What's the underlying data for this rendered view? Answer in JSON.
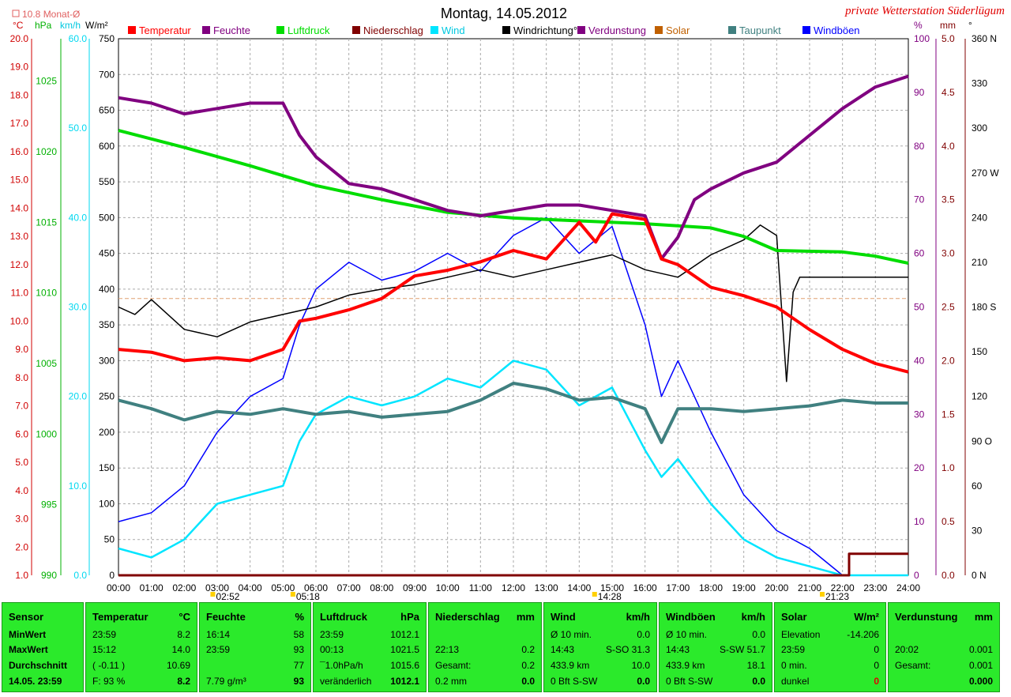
{
  "header": {
    "title": "Montag, 14.05.2012",
    "station": "private Wetterstation Süderlügum",
    "monthly_avg_label": "10.8 Monat-Ø",
    "unit_celsius": "°C",
    "unit_hpa": "hPa",
    "unit_kmh": "km/h",
    "unit_wm2": "W/m²",
    "unit_percent": "%",
    "unit_mm": "mm",
    "unit_degree": "°"
  },
  "legend": [
    {
      "label": "Temperatur",
      "color": "#ff0000"
    },
    {
      "label": "Feuchte",
      "color": "#800080"
    },
    {
      "label": "Luftdruck",
      "color": "#00dd00"
    },
    {
      "label": "Niederschlag",
      "color": "#800000"
    },
    {
      "label": "Wind",
      "color": "#00e5ff"
    },
    {
      "label": "Windrichtung°",
      "color": "#000000"
    },
    {
      "label": "Verdunstung",
      "color": "#800080"
    },
    {
      "label": "Solar",
      "color": "#c06000"
    },
    {
      "label": "Taupunkt",
      "color": "#408080"
    },
    {
      "label": "Windböen",
      "color": "#0000ff"
    }
  ],
  "chart_data": {
    "type": "line",
    "x_ticks": [
      "00:00",
      "01:00",
      "02:00",
      "03:00",
      "04:00",
      "05:00",
      "06:00",
      "07:00",
      "08:00",
      "09:00",
      "10:00",
      "11:00",
      "12:00",
      "13:00",
      "14:00",
      "15:00",
      "16:00",
      "17:00",
      "18:00",
      "19:00",
      "20:00",
      "21:00",
      "22:00",
      "23:00",
      "24:00"
    ],
    "axes": {
      "temperature": {
        "label": "°C",
        "range": [
          1.0,
          20.0
        ],
        "ticks": [
          "20.0",
          "19.0",
          "18.0",
          "17.0",
          "16.0",
          "15.0",
          "14.0",
          "13.0",
          "12.0",
          "11.0",
          "10.0",
          "9.0",
          "8.0",
          "7.0",
          "6.0",
          "5.0",
          "4.0",
          "3.0",
          "2.0",
          "1.0"
        ]
      },
      "pressure": {
        "label": "hPa",
        "range": [
          990,
          1028
        ],
        "ticks": [
          "1025",
          "1020",
          "1015",
          "1010",
          "1005",
          "1000",
          "995",
          "990"
        ]
      },
      "wind": {
        "label": "km/h",
        "range": [
          0,
          60
        ],
        "ticks": [
          "60.0",
          "50.0",
          "40.0",
          "30.0",
          "20.0",
          "10.0",
          "0.0"
        ]
      },
      "solar": {
        "label": "W/m²",
        "range": [
          0,
          750
        ],
        "ticks": [
          "750",
          "700",
          "650",
          "600",
          "550",
          "500",
          "450",
          "400",
          "350",
          "300",
          "250",
          "200",
          "150",
          "100",
          "50",
          "0"
        ]
      },
      "humidity": {
        "label": "%",
        "range": [
          0,
          100
        ],
        "ticks": [
          "100",
          "90",
          "80",
          "70",
          "60",
          "50",
          "40",
          "30",
          "20",
          "10",
          "0"
        ]
      },
      "rain": {
        "label": "mm",
        "range": [
          0,
          5
        ],
        "ticks": [
          "5.0",
          "4.5",
          "4.0",
          "3.5",
          "3.0",
          "2.5",
          "2.0",
          "1.5",
          "1.0",
          "0.5",
          "0.0"
        ]
      },
      "winddir": {
        "label": "°",
        "range": [
          0,
          360
        ],
        "ticks": [
          "360 N",
          "330",
          "300",
          "270 W",
          "240",
          "210",
          "180 S",
          "150",
          "120",
          "90 O",
          "60",
          "30",
          "0 N"
        ]
      }
    },
    "markers": [
      "02:52",
      "05:18",
      "14:28",
      "21:23"
    ],
    "series": [
      {
        "name": "Temperatur",
        "axis": "temperature",
        "color": "#ff0000",
        "points": [
          [
            0,
            9.0
          ],
          [
            1,
            8.9
          ],
          [
            2,
            8.6
          ],
          [
            3,
            8.7
          ],
          [
            4,
            8.6
          ],
          [
            5,
            9.0
          ],
          [
            5.5,
            10.0
          ],
          [
            6,
            10.1
          ],
          [
            7,
            10.4
          ],
          [
            8,
            10.8
          ],
          [
            9,
            11.6
          ],
          [
            10,
            11.8
          ],
          [
            11,
            12.1
          ],
          [
            12,
            12.5
          ],
          [
            13,
            12.2
          ],
          [
            14,
            13.5
          ],
          [
            14.5,
            12.8
          ],
          [
            15,
            13.8
          ],
          [
            16,
            13.6
          ],
          [
            16.5,
            12.2
          ],
          [
            17,
            12.0
          ],
          [
            18,
            11.2
          ],
          [
            19,
            10.9
          ],
          [
            20,
            10.5
          ],
          [
            21,
            9.7
          ],
          [
            22,
            9.0
          ],
          [
            23,
            8.5
          ],
          [
            24,
            8.2
          ]
        ]
      },
      {
        "name": "Feuchte",
        "axis": "humidity",
        "color": "#800080",
        "points": [
          [
            0,
            89
          ],
          [
            1,
            88
          ],
          [
            2,
            86
          ],
          [
            3,
            87
          ],
          [
            4,
            88
          ],
          [
            5,
            88
          ],
          [
            5.5,
            82
          ],
          [
            6,
            78
          ],
          [
            7,
            73
          ],
          [
            8,
            72
          ],
          [
            9,
            70
          ],
          [
            10,
            68
          ],
          [
            11,
            67
          ],
          [
            12,
            68
          ],
          [
            13,
            69
          ],
          [
            14,
            69
          ],
          [
            15,
            68
          ],
          [
            16,
            67
          ],
          [
            16.5,
            59
          ],
          [
            17,
            63
          ],
          [
            17.5,
            70
          ],
          [
            18,
            72
          ],
          [
            19,
            75
          ],
          [
            20,
            77
          ],
          [
            21,
            82
          ],
          [
            22,
            87
          ],
          [
            23,
            91
          ],
          [
            24,
            93
          ]
        ]
      },
      {
        "name": "Luftdruck",
        "axis": "pressure",
        "color": "#00dd00",
        "points": [
          [
            0,
            1021.5
          ],
          [
            2,
            1020.3
          ],
          [
            4,
            1019.0
          ],
          [
            6,
            1017.6
          ],
          [
            8,
            1016.6
          ],
          [
            10,
            1015.7
          ],
          [
            12,
            1015.3
          ],
          [
            14,
            1015.1
          ],
          [
            16,
            1014.9
          ],
          [
            18,
            1014.6
          ],
          [
            19,
            1014.0
          ],
          [
            20,
            1013.0
          ],
          [
            22,
            1012.9
          ],
          [
            23,
            1012.6
          ],
          [
            24,
            1012.1
          ]
        ]
      },
      {
        "name": "Taupunkt",
        "axis": "temperature",
        "color": "#408080",
        "points": [
          [
            0,
            7.2
          ],
          [
            1,
            6.9
          ],
          [
            2,
            6.5
          ],
          [
            3,
            6.8
          ],
          [
            4,
            6.7
          ],
          [
            5,
            6.9
          ],
          [
            6,
            6.7
          ],
          [
            7,
            6.8
          ],
          [
            8,
            6.6
          ],
          [
            9,
            6.7
          ],
          [
            10,
            6.8
          ],
          [
            11,
            7.2
          ],
          [
            12,
            7.8
          ],
          [
            13,
            7.6
          ],
          [
            14,
            7.2
          ],
          [
            15,
            7.3
          ],
          [
            16,
            6.9
          ],
          [
            16.5,
            5.7
          ],
          [
            17,
            6.9
          ],
          [
            18,
            6.9
          ],
          [
            19,
            6.8
          ],
          [
            20,
            6.9
          ],
          [
            21,
            7.0
          ],
          [
            22,
            7.2
          ],
          [
            23,
            7.1
          ],
          [
            24,
            7.1
          ]
        ]
      },
      {
        "name": "Niederschlag",
        "axis": "rain",
        "color": "#800000",
        "points": [
          [
            0,
            0
          ],
          [
            22.2,
            0
          ],
          [
            22.2,
            0.2
          ],
          [
            24,
            0.2
          ]
        ]
      },
      {
        "name": "Windrichtung°",
        "axis": "winddir",
        "color": "#000000",
        "points": [
          [
            0,
            180
          ],
          [
            0.5,
            175
          ],
          [
            1,
            185
          ],
          [
            2,
            165
          ],
          [
            3,
            160
          ],
          [
            4,
            170
          ],
          [
            5,
            175
          ],
          [
            6,
            180
          ],
          [
            7,
            188
          ],
          [
            8,
            192
          ],
          [
            9,
            195
          ],
          [
            10,
            200
          ],
          [
            11,
            205
          ],
          [
            12,
            200
          ],
          [
            13,
            205
          ],
          [
            14,
            210
          ],
          [
            15,
            215
          ],
          [
            16,
            205
          ],
          [
            17,
            200
          ],
          [
            18,
            215
          ],
          [
            19,
            225
          ],
          [
            19.5,
            235
          ],
          [
            20,
            228
          ],
          [
            20.3,
            130
          ],
          [
            20.5,
            190
          ],
          [
            20.7,
            200
          ],
          [
            24,
            200
          ]
        ]
      },
      {
        "name": "Wind",
        "axis": "wind",
        "color": "#00e5ff",
        "points": [
          [
            0,
            3
          ],
          [
            1,
            2
          ],
          [
            2,
            4
          ],
          [
            3,
            8
          ],
          [
            4,
            9
          ],
          [
            5,
            10
          ],
          [
            5.5,
            15
          ],
          [
            6,
            18
          ],
          [
            7,
            20
          ],
          [
            8,
            19
          ],
          [
            9,
            20
          ],
          [
            10,
            22
          ],
          [
            11,
            21
          ],
          [
            12,
            24
          ],
          [
            13,
            23
          ],
          [
            14,
            19
          ],
          [
            15,
            21
          ],
          [
            16,
            14
          ],
          [
            16.5,
            11
          ],
          [
            17,
            13
          ],
          [
            18,
            8
          ],
          [
            19,
            4
          ],
          [
            20,
            2
          ],
          [
            21,
            1
          ],
          [
            22,
            0
          ],
          [
            24,
            0
          ]
        ]
      },
      {
        "name": "Windböen",
        "axis": "wind",
        "color": "#0000ff",
        "points": [
          [
            0,
            6
          ],
          [
            1,
            7
          ],
          [
            2,
            10
          ],
          [
            3,
            16
          ],
          [
            4,
            20
          ],
          [
            5,
            22
          ],
          [
            5.5,
            28
          ],
          [
            6,
            32
          ],
          [
            7,
            35
          ],
          [
            8,
            33
          ],
          [
            9,
            34
          ],
          [
            10,
            36
          ],
          [
            11,
            34
          ],
          [
            12,
            38
          ],
          [
            13,
            40
          ],
          [
            14,
            36
          ],
          [
            15,
            39
          ],
          [
            16,
            28
          ],
          [
            16.5,
            20
          ],
          [
            17,
            24
          ],
          [
            18,
            16
          ],
          [
            19,
            9
          ],
          [
            20,
            5
          ],
          [
            21,
            3
          ],
          [
            22,
            0
          ],
          [
            24,
            0
          ]
        ]
      }
    ]
  },
  "stats": {
    "sensor": {
      "title": "Sensor",
      "r1": "MinWert",
      "r2": "MaxWert",
      "r3": "Durchschnitt",
      "r4": "14.05. 23:59"
    },
    "temperature": {
      "title": "Temperatur",
      "unit": "°C",
      "r1a": "23:59",
      "r1b": "8.2",
      "r2a": "15:12",
      "r2b": "14.0",
      "r3a": "( -0.11 )",
      "r3b": "10.69",
      "r4a": "F: 93 %",
      "r4b": "8.2"
    },
    "humidity": {
      "title": "Feuchte",
      "unit": "%",
      "r1a": "16:14",
      "r1b": "58",
      "r2a": "23:59",
      "r2b": "93",
      "r3a": "",
      "r3b": "77",
      "r4a": "7.79 g/m³",
      "r4b": "93"
    },
    "pressure": {
      "title": "Luftdruck",
      "unit": "hPa",
      "r1a": "23:59",
      "r1b": "1012.1",
      "r2a": "00:13",
      "r2b": "1021.5",
      "r3a": "¯1.0hPa/h",
      "r3b": "1015.6",
      "r4a": "veränderlich",
      "r4b": "1012.1"
    },
    "rain": {
      "title": "Niederschlag",
      "unit": "mm",
      "r1a": "",
      "r1b": "",
      "r2a": "22:13",
      "r2b": "0.2",
      "r3a": "Gesamt:",
      "r3b": "0.2",
      "r4a": "0.2 mm",
      "r4b": "0.0"
    },
    "wind": {
      "title": "Wind",
      "unit": "km/h",
      "r1a": "Ø 10 min.",
      "r1b": "0.0",
      "r2a": "14:43",
      "r2c": "S-SO 31.3",
      "r3a": "433.9 km",
      "r3b": "10.0",
      "r4a": "0 Bft S-SW",
      "r4b": "0.0"
    },
    "gust": {
      "title": "Windböen",
      "unit": "km/h",
      "r1a": "Ø 10 min.",
      "r1b": "0.0",
      "r2a": "14:43",
      "r2c": "S-SW 51.7",
      "r3a": "433.9 km",
      "r3b": "18.1",
      "r4a": "0 Bft S-SW",
      "r4b": "0.0"
    },
    "solar": {
      "title": "Solar",
      "unit": "W/m²",
      "r1a": "Elevation",
      "r1b": "-14.206",
      "r2a": "23:59",
      "r2b": "0",
      "r3a": "0 min.",
      "r3b": "0",
      "r4a": "dunkel",
      "r4b": "0"
    },
    "evap": {
      "title": "Verdunstung",
      "unit": "mm",
      "r1a": "",
      "r1b": "",
      "r2a": "20:02",
      "r2b": "0.001",
      "r3a": "Gesamt:",
      "r3b": "0.001",
      "r4a": "",
      "r4b": "0.000"
    }
  }
}
